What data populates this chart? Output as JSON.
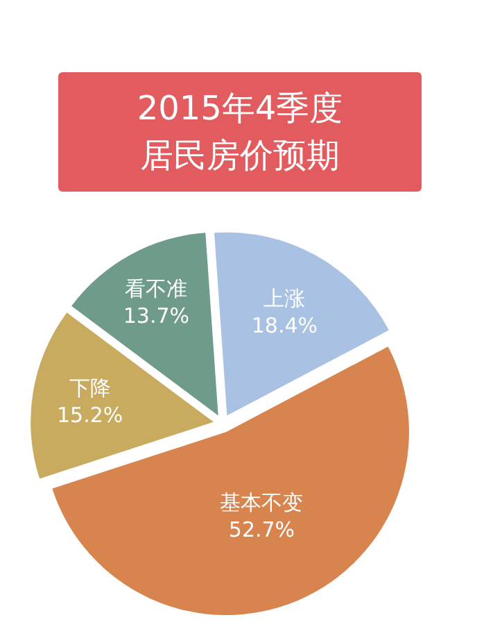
{
  "chart_data": {
    "type": "pie",
    "title": "2015年4季度居民房价预期",
    "categories": [
      "上涨",
      "基本不变",
      "下降",
      "看不准"
    ],
    "values": [
      18.4,
      52.7,
      15.2,
      13.7
    ],
    "value_labels": [
      "18.4%",
      "52.7%",
      "15.2%",
      "13.7%"
    ],
    "colors": [
      "#a9c1e3",
      "#d8844f",
      "#c8ab5e",
      "#6f9b8b"
    ],
    "legend": false
  }
}
